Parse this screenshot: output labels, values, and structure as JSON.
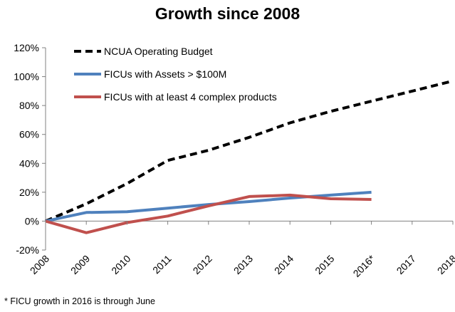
{
  "chart_data": {
    "type": "line",
    "title": "Growth since 2008",
    "xlabel": "",
    "ylabel": "",
    "categories": [
      "2008",
      "2009",
      "2010",
      "2011",
      "2012",
      "2013",
      "2014",
      "2015",
      "2016*",
      "2017",
      "2018"
    ],
    "ylim": [
      -0.2,
      1.2
    ],
    "yticks": [
      -0.2,
      0,
      0.2,
      0.4,
      0.6,
      0.8,
      1.0,
      1.2
    ],
    "ytick_labels": [
      "-20%",
      "0%",
      "20%",
      "40%",
      "60%",
      "80%",
      "100%",
      "120%"
    ],
    "grid": false,
    "legend_position": "top-left",
    "series": [
      {
        "name": "NCUA Operating Budget",
        "color": "#000000",
        "dash": "dashed",
        "values": [
          0,
          0.12,
          0.26,
          0.42,
          0.49,
          0.58,
          0.68,
          0.76,
          0.83,
          0.9,
          0.97
        ]
      },
      {
        "name": "FICUs with Assets > $100M",
        "color": "#4F81BD",
        "dash": "solid",
        "values": [
          0,
          0.06,
          0.065,
          0.09,
          0.115,
          0.135,
          0.16,
          0.18,
          0.2,
          null,
          null
        ]
      },
      {
        "name": "FICUs with at least 4 complex products",
        "color": "#C0504D",
        "dash": "solid",
        "values": [
          0,
          -0.08,
          -0.01,
          0.035,
          0.105,
          0.17,
          0.18,
          0.155,
          0.15,
          null,
          null
        ]
      }
    ]
  },
  "footnote": "* FICU growth in 2016 is through June"
}
